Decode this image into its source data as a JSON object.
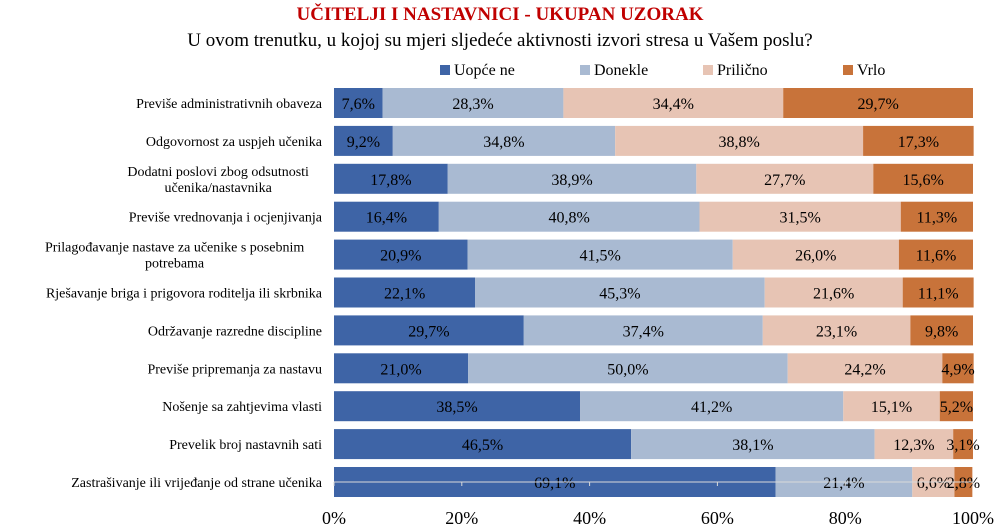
{
  "title": "UČITELJI I NASTAVNICI - UKUPAN UZORAK",
  "subtitle": "U ovom trenutku, u kojoj su mjeri sljedeće aktivnosti izvori stresa u Vašem poslu?",
  "chart_data": {
    "type": "bar",
    "orientation": "horizontal",
    "stacked": true,
    "percent_axis": true,
    "xlim": [
      0,
      100
    ],
    "ticks": [
      "0%",
      "20%",
      "40%",
      "60%",
      "80%",
      "100%"
    ],
    "legend_position": "top",
    "categories": [
      [
        "Previše administrativnih obaveza"
      ],
      [
        "Odgovornost za uspjeh učenika"
      ],
      [
        "Dodatni poslovi zbog odsutnosti",
        "učenika/nastavnika"
      ],
      [
        "Previše vrednovanja i ocjenjivanja"
      ],
      [
        "Prilagođavanje nastave za učenike s posebnim",
        "potrebama"
      ],
      [
        "Rješavanje briga i prigovora roditelja ili skrbnika"
      ],
      [
        "Održavanje razredne discipline"
      ],
      [
        "Previše pripremanja za nastavu"
      ],
      [
        "Nošenje sa zahtjevima vlasti"
      ],
      [
        "Prevelik broj nastavnih sati"
      ],
      [
        "Zastrašivanje ili vrijeđanje od strane učenika"
      ]
    ],
    "series": [
      {
        "name": "Uopće ne",
        "color": "#3e64a6",
        "values": [
          7.6,
          9.2,
          17.8,
          16.4,
          20.9,
          22.1,
          29.7,
          21.0,
          38.5,
          46.5,
          69.1
        ],
        "labels": [
          "7,6%",
          "9,2%",
          "17,8%",
          "16,4%",
          "20,9%",
          "22,1%",
          "29,7%",
          "21,0%",
          "38,5%",
          "46,5%",
          "69,1%"
        ]
      },
      {
        "name": "Donekle",
        "color": "#a9bad2",
        "values": [
          28.3,
          34.8,
          38.9,
          40.8,
          41.5,
          45.3,
          37.4,
          50.0,
          41.2,
          38.1,
          21.4
        ],
        "labels": [
          "28,3%",
          "34,8%",
          "38,9%",
          "40,8%",
          "41,5%",
          "45,3%",
          "37,4%",
          "50,0%",
          "41,2%",
          "38,1%",
          "21,4%"
        ]
      },
      {
        "name": "Prilično",
        "color": "#e7c4b4",
        "values": [
          34.4,
          38.8,
          27.7,
          31.5,
          26.0,
          21.6,
          23.1,
          24.2,
          15.1,
          12.3,
          6.6
        ],
        "labels": [
          "34,4%",
          "38,8%",
          "27,7%",
          "31,5%",
          "26,0%",
          "21,6%",
          "23,1%",
          "24,2%",
          "15,1%",
          "12,3%",
          "6,6%"
        ]
      },
      {
        "name": "Vrlo",
        "color": "#c8733a",
        "values": [
          29.7,
          17.3,
          15.6,
          11.3,
          11.6,
          11.1,
          9.8,
          4.9,
          5.2,
          3.1,
          2.8
        ],
        "labels": [
          "29,7%",
          "17,3%",
          "15,6%",
          "11,3%",
          "11,6%",
          "11,1%",
          "9,8%",
          "4,9%",
          "5,2%",
          "3,1%",
          "2,8%"
        ]
      }
    ]
  }
}
